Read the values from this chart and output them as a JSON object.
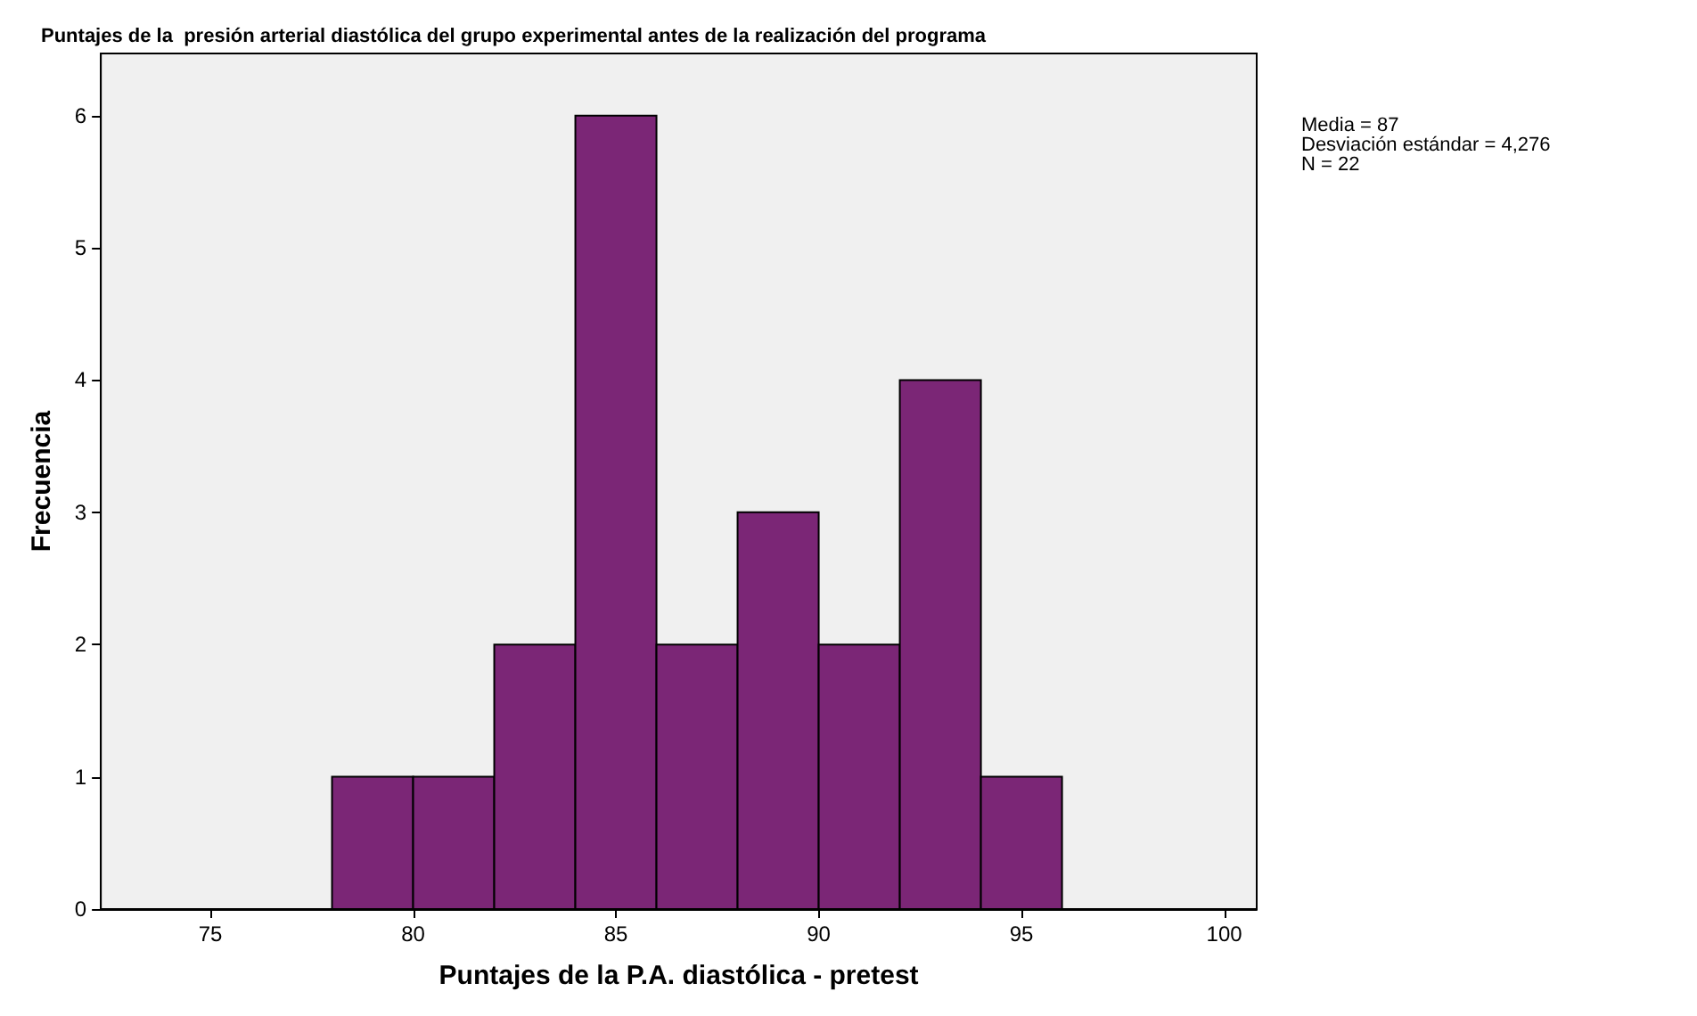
{
  "chart_data": {
    "type": "histogram",
    "title": "Puntajes de la  presión arterial diastólica del grupo experimental antes de la realización del programa",
    "xlabel": "Puntajes de la P.A. diastólica - pretest",
    "ylabel": "Frecuencia",
    "bins": [
      78,
      80,
      82,
      84,
      86,
      88,
      90,
      92,
      94,
      96
    ],
    "values": [
      1,
      1,
      2,
      6,
      2,
      3,
      2,
      4,
      1
    ],
    "color": "#7b2676",
    "xlim": [
      72.3,
      100.8
    ],
    "xticks": [
      75,
      80,
      85,
      90,
      95,
      100
    ],
    "ylim": [
      0,
      6.47
    ],
    "yticks": [
      0,
      1,
      2,
      3,
      4,
      5,
      6
    ],
    "grid": false,
    "annotations": [
      "Media = 87",
      "Desviación estándar = 4,276",
      "N = 22"
    ]
  }
}
